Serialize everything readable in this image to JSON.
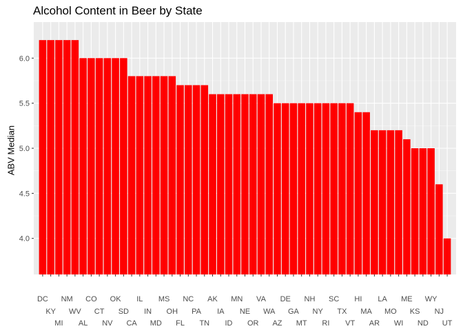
{
  "chart_data": {
    "type": "bar",
    "title": "Alcohol Content in Beer by State",
    "xlabel": "",
    "ylabel": "ABV Median",
    "ylim": [
      3.6,
      6.4
    ],
    "yticks": [
      4.0,
      4.5,
      5.0,
      5.5,
      6.0
    ],
    "ytick_labels": [
      "4.0",
      "4.5",
      "5.0",
      "5.5",
      "6.0"
    ],
    "grid": true,
    "colors": {
      "bar": "#ff0000",
      "panel": "#ebebeb",
      "grid_major": "#ffffff",
      "grid_minor": "#f5f5f5"
    },
    "categories": [
      "DC",
      "KY",
      "MI",
      "NM",
      "WV",
      "AL",
      "CO",
      "CT",
      "NV",
      "OK",
      "SD",
      "CA",
      "IL",
      "IN",
      "MD",
      "MS",
      "OH",
      "FL",
      "NC",
      "PA",
      "TN",
      "AK",
      "IA",
      "ID",
      "MN",
      "NE",
      "OR",
      "VA",
      "WA",
      "AZ",
      "DE",
      "GA",
      "MT",
      "NH",
      "NY",
      "RI",
      "SC",
      "TX",
      "VT",
      "HI",
      "MA",
      "AR",
      "LA",
      "MO",
      "WI",
      "ME",
      "KS",
      "ND",
      "WY",
      "NJ",
      "UT"
    ],
    "values": [
      6.2,
      6.2,
      6.2,
      6.2,
      6.2,
      6.0,
      6.0,
      6.0,
      6.0,
      6.0,
      6.0,
      5.8,
      5.8,
      5.8,
      5.8,
      5.8,
      5.8,
      5.7,
      5.7,
      5.7,
      5.7,
      5.6,
      5.6,
      5.6,
      5.6,
      5.6,
      5.6,
      5.6,
      5.6,
      5.5,
      5.5,
      5.5,
      5.5,
      5.5,
      5.5,
      5.5,
      5.5,
      5.5,
      5.5,
      5.4,
      5.4,
      5.2,
      5.2,
      5.2,
      5.2,
      5.1,
      5.0,
      5.0,
      5.0,
      4.6,
      4.0
    ]
  }
}
